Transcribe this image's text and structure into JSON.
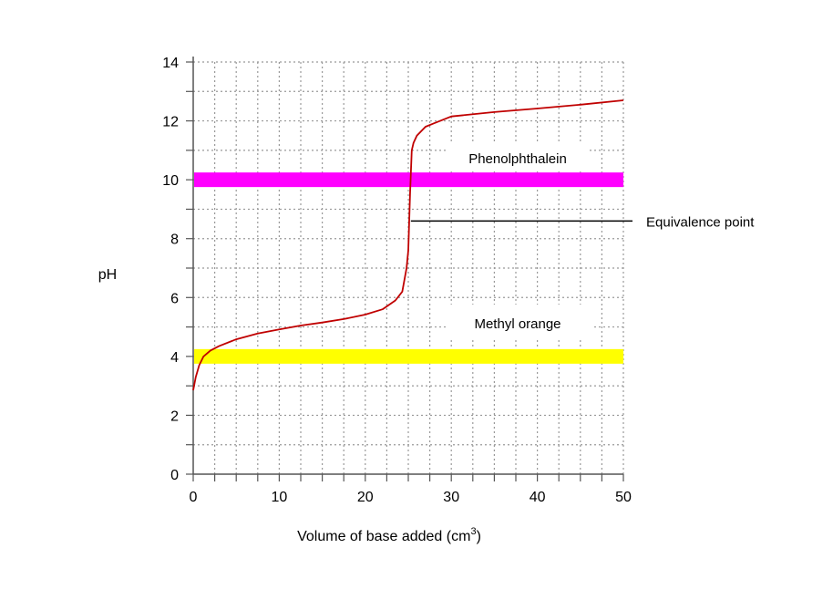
{
  "chart_data": {
    "type": "line",
    "title": "",
    "xlabel": "Volume of base added (cm",
    "xlabel_superscript": "3",
    "xlabel_suffix": ")",
    "ylabel": "pH",
    "xlim": [
      0,
      50
    ],
    "ylim": [
      0,
      14
    ],
    "x_ticks": [
      0,
      10,
      20,
      30,
      40,
      50
    ],
    "y_ticks": [
      0,
      2,
      4,
      6,
      8,
      10,
      12,
      14
    ],
    "x_minor_step": 2.5,
    "y_minor_step": 1,
    "grid": "dotted",
    "curve_color": "#c00000",
    "series": [
      {
        "x": [
          0,
          0.3,
          0.7,
          1.2,
          2,
          3,
          5,
          7.5,
          10,
          12.5,
          15,
          17.5,
          20,
          22,
          23.5,
          24.3,
          24.8,
          25,
          25.2,
          25.4,
          25.6,
          26,
          27,
          28,
          30,
          35,
          40,
          45,
          50
        ],
        "y": [
          2.85,
          3.3,
          3.7,
          4.0,
          4.2,
          4.35,
          4.58,
          4.78,
          4.92,
          5.05,
          5.15,
          5.27,
          5.42,
          5.6,
          5.9,
          6.2,
          7.0,
          7.6,
          9.5,
          11.0,
          11.25,
          11.5,
          11.8,
          11.92,
          12.15,
          12.3,
          12.42,
          12.55,
          12.7
        ]
      }
    ],
    "bands": [
      {
        "name": "Phenolphthalein",
        "y": 10,
        "color": "#ff00ff"
      },
      {
        "name": "Methyl orange",
        "y": 4,
        "color": "#ffff00"
      }
    ],
    "equivalence": {
      "label": "Equivalence point",
      "x": 25.3,
      "y": 8.6
    }
  }
}
